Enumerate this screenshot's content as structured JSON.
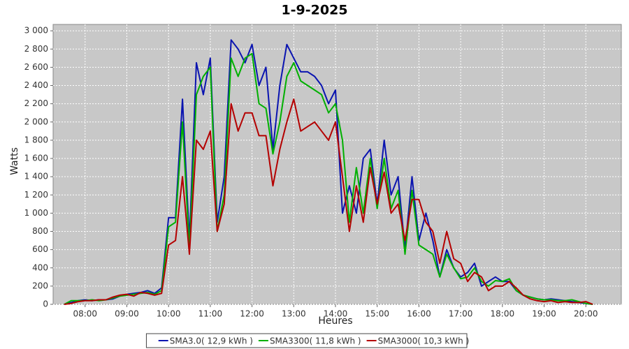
{
  "chart_data": {
    "type": "line",
    "title": "1-9-2025",
    "x_label": "Heures",
    "y_label": "Watts",
    "x": [
      "07:30",
      "07:40",
      "07:50",
      "08:00",
      "08:10",
      "08:20",
      "08:30",
      "08:40",
      "08:50",
      "09:00",
      "09:10",
      "09:20",
      "09:30",
      "09:40",
      "09:50",
      "10:00",
      "10:10",
      "10:20",
      "10:30",
      "10:40",
      "10:50",
      "11:00",
      "11:10",
      "11:20",
      "11:30",
      "11:40",
      "11:50",
      "12:00",
      "12:10",
      "12:20",
      "12:30",
      "12:40",
      "12:50",
      "13:00",
      "13:10",
      "13:20",
      "13:30",
      "13:40",
      "13:50",
      "14:00",
      "14:10",
      "14:20",
      "14:30",
      "14:40",
      "14:50",
      "15:00",
      "15:10",
      "15:20",
      "15:30",
      "15:40",
      "15:50",
      "16:00",
      "16:10",
      "16:20",
      "16:30",
      "16:40",
      "16:50",
      "17:00",
      "17:10",
      "17:20",
      "17:30",
      "17:40",
      "17:50",
      "18:00",
      "18:10",
      "18:20",
      "18:30",
      "18:40",
      "18:50",
      "19:00",
      "19:10",
      "19:20",
      "19:30",
      "19:40",
      "19:50",
      "20:00",
      "20:10"
    ],
    "series": [
      {
        "name": "SMA3.0( 12,9 kWh )",
        "color": "#0a14b0",
        "values": [
          0,
          20,
          40,
          50,
          40,
          50,
          50,
          60,
          90,
          110,
          120,
          130,
          150,
          120,
          180,
          950,
          950,
          2250,
          700,
          2650,
          2300,
          2700,
          900,
          1400,
          2900,
          2800,
          2650,
          2850,
          2400,
          2600,
          1700,
          2400,
          2850,
          2700,
          2550,
          2550,
          2500,
          2400,
          2200,
          2350,
          1000,
          1300,
          1000,
          1600,
          1700,
          1100,
          1800,
          1200,
          1400,
          600,
          1400,
          700,
          1000,
          700,
          300,
          600,
          400,
          300,
          350,
          450,
          200,
          250,
          300,
          250,
          250,
          150,
          100,
          80,
          60,
          50,
          60,
          50,
          40,
          30,
          20,
          10,
          0
        ]
      },
      {
        "name": "SMA3300( 11,8 kWh )",
        "color": "#00b000",
        "values": [
          0,
          40,
          40,
          40,
          50,
          40,
          50,
          70,
          90,
          100,
          110,
          120,
          130,
          110,
          150,
          850,
          900,
          2000,
          600,
          2300,
          2500,
          2600,
          800,
          1200,
          2700,
          2500,
          2700,
          2750,
          2200,
          2150,
          1650,
          2000,
          2500,
          2650,
          2450,
          2400,
          2350,
          2300,
          2100,
          2200,
          1800,
          900,
          1500,
          1000,
          1600,
          1050,
          1600,
          1050,
          1250,
          550,
          1250,
          650,
          600,
          550,
          300,
          550,
          400,
          280,
          300,
          400,
          250,
          200,
          260,
          250,
          280,
          150,
          100,
          80,
          60,
          50,
          50,
          40,
          40,
          50,
          30,
          10,
          0
        ]
      },
      {
        "name": "SMA3000( 10,3 kWh )",
        "color": "#b40000",
        "values": [
          0,
          10,
          30,
          40,
          40,
          50,
          50,
          80,
          100,
          110,
          90,
          130,
          120,
          100,
          120,
          650,
          700,
          1400,
          550,
          1800,
          1700,
          1900,
          800,
          1100,
          2200,
          1900,
          2100,
          2100,
          1850,
          1850,
          1300,
          1700,
          2000,
          2250,
          1900,
          1950,
          2000,
          1900,
          1800,
          2000,
          1400,
          800,
          1300,
          900,
          1500,
          1100,
          1450,
          1000,
          1100,
          700,
          1150,
          1150,
          900,
          800,
          450,
          800,
          500,
          450,
          250,
          350,
          300,
          150,
          200,
          200,
          250,
          180,
          100,
          60,
          40,
          30,
          40,
          20,
          30,
          20,
          20,
          30,
          0
        ]
      }
    ],
    "xlim": [
      "07:14",
      "20:51"
    ],
    "xticks": [
      "08:00",
      "09:00",
      "10:00",
      "11:00",
      "12:00",
      "13:00",
      "14:00",
      "15:00",
      "16:00",
      "17:00",
      "18:00",
      "19:00",
      "20:00"
    ],
    "ylim": [
      0,
      3070
    ],
    "yticks": [
      0,
      200,
      400,
      600,
      800,
      {
        "value": 1000,
        "label": "1 000"
      },
      {
        "value": 1200,
        "label": "1 200"
      },
      {
        "value": 1400,
        "label": "1 400"
      },
      {
        "value": 1600,
        "label": "1 600"
      },
      {
        "value": 1800,
        "label": "1 800"
      },
      {
        "value": 2000,
        "label": "2 000"
      },
      {
        "value": 2200,
        "label": "2 200"
      },
      {
        "value": 2400,
        "label": "2 400"
      },
      {
        "value": 2600,
        "label": "2 600"
      },
      {
        "value": 2800,
        "label": "2 800"
      },
      {
        "value": 3000,
        "label": "3 000"
      }
    ],
    "grid": true,
    "background": "#c8c8c8",
    "legend": "bottom"
  }
}
